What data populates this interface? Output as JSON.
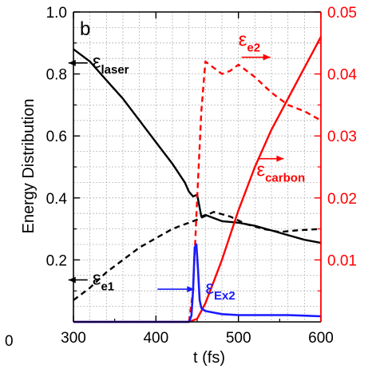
{
  "chart_data": {
    "type": "line",
    "panel_label": "b",
    "xlabel": "t (fs)",
    "ylabel": "Energy Distribution",
    "xlim": [
      300,
      600
    ],
    "ylim_left": [
      0,
      1.0
    ],
    "ylim_right": [
      0,
      0.05
    ],
    "x_ticks": [
      "300",
      "400",
      "500",
      "600"
    ],
    "y_ticks_left": [
      "0.2",
      "0.4",
      "0.6",
      "0.8",
      "1.0"
    ],
    "y_ticks_right": [
      "0.01",
      "0.02",
      "0.03",
      "0.04",
      "0.05"
    ],
    "origin_label": "0",
    "grid": true,
    "colors": {
      "laser": "#000000",
      "e1": "#000000",
      "e2": "#ff0000",
      "carbon": "#ff0000",
      "ex2": "#1a1aff",
      "right_axis": "#ff0000"
    },
    "series": [
      {
        "key": "laser",
        "axis": "left",
        "style": "solid",
        "color": "#000000",
        "x": [
          300,
          320,
          340,
          360,
          380,
          400,
          420,
          435,
          440,
          445,
          450,
          455,
          460,
          470,
          480,
          500,
          520,
          540,
          560,
          580,
          600
        ],
        "y": [
          0.88,
          0.84,
          0.78,
          0.72,
          0.65,
          0.58,
          0.51,
          0.45,
          0.42,
          0.405,
          0.41,
          0.34,
          0.345,
          0.335,
          0.325,
          0.32,
          0.31,
          0.295,
          0.28,
          0.265,
          0.255
        ]
      },
      {
        "key": "e1",
        "axis": "left",
        "style": "dashed",
        "color": "#000000",
        "x": [
          300,
          320,
          340,
          360,
          380,
          400,
          420,
          440,
          450,
          470,
          490,
          510,
          530,
          550,
          570,
          600
        ],
        "y": [
          0.07,
          0.11,
          0.16,
          0.2,
          0.24,
          0.27,
          0.3,
          0.32,
          0.33,
          0.355,
          0.34,
          0.315,
          0.3,
          0.29,
          0.295,
          0.3
        ]
      },
      {
        "key": "e2",
        "axis": "right",
        "style": "dashed",
        "color": "#ff0000",
        "x": [
          440,
          445,
          450,
          455,
          460,
          465,
          470,
          480,
          490,
          500,
          510,
          520,
          540,
          560,
          580,
          600
        ],
        "y": [
          0.0,
          0.005,
          0.02,
          0.034,
          0.042,
          0.0415,
          0.041,
          0.04,
          0.0405,
          0.0415,
          0.0405,
          0.0395,
          0.037,
          0.035,
          0.034,
          0.0325
        ]
      },
      {
        "key": "carbon",
        "axis": "right",
        "style": "solid",
        "color": "#ff0000",
        "x": [
          300,
          440,
          450,
          460,
          470,
          480,
          500,
          520,
          540,
          560,
          580,
          590,
          600
        ],
        "y": [
          0.0,
          0.0,
          0.0005,
          0.003,
          0.0065,
          0.01,
          0.018,
          0.025,
          0.031,
          0.036,
          0.041,
          0.0435,
          0.046
        ]
      },
      {
        "key": "ex2",
        "axis": "left",
        "style": "solid",
        "color": "#1a1aff",
        "x": [
          300,
          440,
          443,
          445,
          447,
          449,
          451,
          453,
          455,
          457,
          460,
          470,
          480,
          500,
          520,
          540,
          560,
          580,
          600
        ],
        "y": [
          0.0,
          0.0,
          0.02,
          0.1,
          0.24,
          0.25,
          0.17,
          0.07,
          0.045,
          0.04,
          0.035,
          0.03,
          0.025,
          0.022,
          0.022,
          0.022,
          0.022,
          0.02,
          0.018
        ]
      }
    ],
    "annotations": [
      {
        "key": "laser",
        "base": "ε",
        "sub": "laser",
        "color": "#000000",
        "arrow": "left",
        "x": 323,
        "y": 0.82
      },
      {
        "key": "e1",
        "base": "ε",
        "sub": "e1",
        "color": "#000000",
        "arrow": "left",
        "x": 323,
        "y": 0.12
      },
      {
        "key": "e2",
        "base": "ε",
        "sub": "e2",
        "color": "#ff0000",
        "arrow": "right",
        "x": 500,
        "y": 0.89
      },
      {
        "key": "carbon",
        "base": "ε",
        "sub": "carbon",
        "color": "#ff0000",
        "arrow": "right",
        "x": 522,
        "y": 0.47
      },
      {
        "key": "ex2",
        "base": "ε",
        "sub": "Ex2",
        "color": "#1a1aff",
        "arrow": "right",
        "x": 460,
        "y": 0.09
      }
    ]
  }
}
